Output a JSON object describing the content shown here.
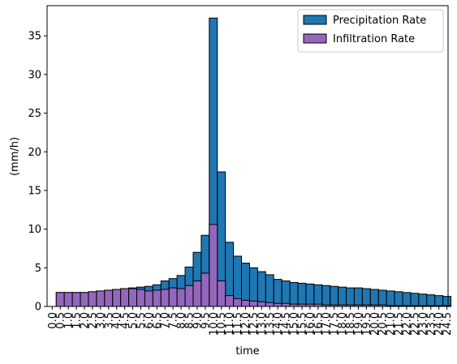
{
  "chart_data": {
    "type": "bar",
    "stacked_overlay": true,
    "xlabel": "time",
    "ylabel": "(mm/h)",
    "ylim": [
      0,
      38.9
    ],
    "yticks": [
      0,
      5,
      10,
      15,
      20,
      25,
      30,
      35
    ],
    "legend_position": "top-right",
    "grid": false,
    "categories": [
      "0.0",
      "0.5",
      "1.0",
      "1.5",
      "2.0",
      "2.5",
      "3.0",
      "3.5",
      "4.0",
      "4.5",
      "5.0",
      "5.5",
      "6.0",
      "6.5",
      "7.0",
      "7.5",
      "8.0",
      "8.5",
      "9.0",
      "9.5",
      "10.0",
      "10.5",
      "11.0",
      "11.5",
      "12.0",
      "12.5",
      "13.0",
      "13.5",
      "14.0",
      "14.5",
      "15.0",
      "15.5",
      "16.0",
      "16.5",
      "17.0",
      "17.5",
      "18.0",
      "18.5",
      "19.0",
      "19.5",
      "20.0",
      "20.5",
      "21.0",
      "21.5",
      "22.0",
      "22.5",
      "23.0",
      "23.5",
      "24.0",
      "24.5"
    ],
    "series": [
      {
        "name": "Precipitation Rate",
        "color": "#1f77b4",
        "values": [
          0,
          1.8,
          1.8,
          1.8,
          1.8,
          1.9,
          2.0,
          2.1,
          2.2,
          2.3,
          2.4,
          2.5,
          2.6,
          2.8,
          3.3,
          3.6,
          4.0,
          5.1,
          7.0,
          9.2,
          37.3,
          17.4,
          8.3,
          6.5,
          5.6,
          5.0,
          4.5,
          4.1,
          3.5,
          3.3,
          3.1,
          3.0,
          2.9,
          2.8,
          2.7,
          2.6,
          2.5,
          2.4,
          2.4,
          2.3,
          2.2,
          2.1,
          2.0,
          1.9,
          1.8,
          1.7,
          1.6,
          1.5,
          1.4,
          1.3
        ]
      },
      {
        "name": "Infiltration Rate",
        "color": "#9467bd",
        "values": [
          0,
          1.8,
          1.8,
          1.8,
          1.8,
          1.9,
          2.0,
          2.1,
          2.2,
          2.3,
          2.3,
          2.2,
          2.0,
          2.1,
          2.2,
          2.4,
          2.3,
          2.7,
          3.3,
          4.3,
          10.6,
          3.3,
          1.4,
          1.0,
          0.8,
          0.7,
          0.6,
          0.5,
          0.4,
          0.4,
          0.3,
          0.3,
          0.3,
          0.3,
          0.2,
          0.2,
          0.2,
          0.2,
          0.2,
          0.2,
          0.2,
          0.2,
          0.1,
          0.1,
          0.1,
          0.1,
          0.1,
          0.1,
          0.1,
          0.1
        ]
      }
    ]
  }
}
